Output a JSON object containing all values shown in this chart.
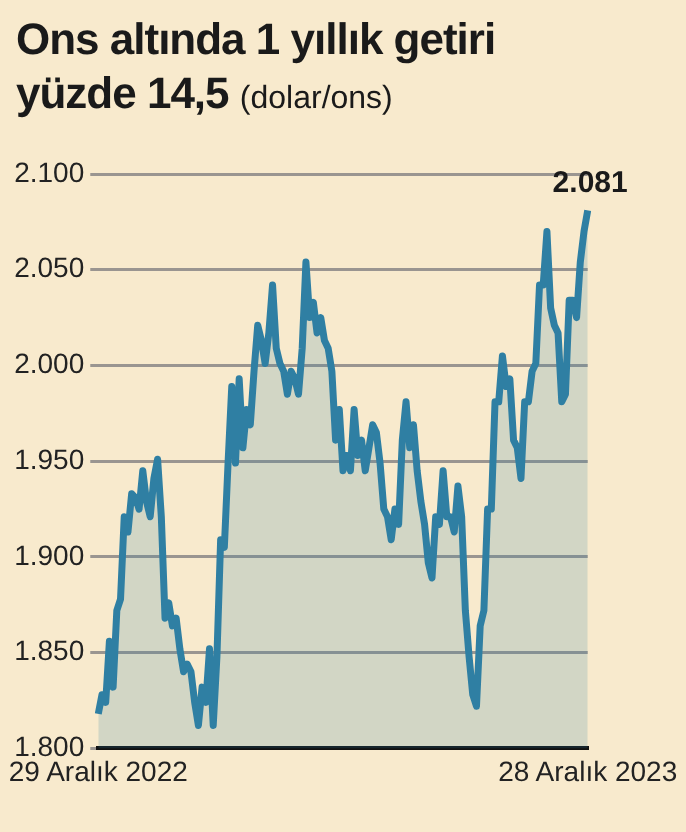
{
  "chart_data": {
    "type": "area",
    "title": "Ons altında 1 yıllık getiri yüzde 14,5",
    "subtitle": "(dolar/ons)",
    "categories": [
      "29 Aralık 2022",
      null,
      null,
      null,
      null,
      null,
      null,
      null,
      null,
      null,
      null,
      null,
      null,
      null,
      null,
      null,
      null,
      null,
      null,
      null,
      null,
      null,
      null,
      null,
      null,
      null,
      null,
      null,
      null,
      null,
      null,
      null,
      null,
      null,
      null,
      null,
      null,
      null,
      null,
      null,
      null,
      null,
      null,
      null,
      null,
      null,
      null,
      null,
      null,
      null,
      null,
      null,
      null,
      null,
      null,
      null,
      null,
      null,
      null,
      null,
      null,
      null,
      null,
      null,
      null,
      null,
      null,
      null,
      null,
      null,
      null,
      null,
      null,
      null,
      null,
      null,
      null,
      null,
      null,
      null,
      null,
      null,
      null,
      null,
      null,
      null,
      null,
      null,
      null,
      null,
      null,
      null,
      null,
      null,
      null,
      null,
      null,
      null,
      null,
      null,
      null,
      null,
      null,
      null,
      null,
      null,
      null,
      null,
      null,
      null,
      null,
      null,
      null,
      null,
      null,
      null,
      null,
      null,
      null,
      null,
      null,
      null,
      null,
      null,
      null,
      null,
      null,
      null,
      null,
      null,
      null,
      null,
      "28 Aralık 2023"
    ],
    "series": [
      {
        "color": "#2f7fa3",
        "values": [
          1818,
          1828,
          1824,
          1856,
          1832,
          1872,
          1878,
          1921,
          1913,
          1933,
          1931,
          1925,
          1945,
          1929,
          1921,
          1941,
          1951,
          1921,
          1868,
          1876,
          1864,
          1868,
          1852,
          1840,
          1844,
          1840,
          1824,
          1812,
          1832,
          1824,
          1852,
          1812,
          1848,
          1909,
          1905,
          1949,
          1989,
          1949,
          1993,
          1957,
          1977,
          1969,
          1997,
          2021,
          2013,
          2001,
          2017,
          2042,
          2009,
          2001,
          1997,
          1985,
          1997,
          1993,
          1985,
          2009,
          2054,
          2025,
          2033,
          2017,
          2025,
          2013,
          2009,
          1997,
          1961,
          1977,
          1945,
          1953,
          1945,
          1977,
          1953,
          1961,
          1945,
          1957,
          1969,
          1965,
          1949,
          1925,
          1921,
          1909,
          1925,
          1917,
          1961,
          1981,
          1957,
          1969,
          1945,
          1929,
          1917,
          1897,
          1889,
          1921,
          1917,
          1945,
          1921,
          1921,
          1913,
          1937,
          1921,
          1872,
          1848,
          1828,
          1822,
          1864,
          1872,
          1925,
          1925,
          1981,
          1981,
          2005,
          1989,
          1993,
          1961,
          1957,
          1941,
          1981,
          1981,
          1997,
          2001,
          2042,
          2042,
          2070,
          2030,
          2021,
          2017,
          1981,
          1985,
          2034,
          2034,
          2025,
          2054,
          2070,
          2081
        ]
      }
    ],
    "ylim": [
      1800,
      2100
    ],
    "yticks": [
      {
        "value": 1800,
        "label": "1.800"
      },
      {
        "value": 1850,
        "label": "1.850"
      },
      {
        "value": 1900,
        "label": "1.900"
      },
      {
        "value": 1950,
        "label": "1.950"
      },
      {
        "value": 2000,
        "label": "2.000"
      },
      {
        "value": 2050,
        "label": "2.050"
      },
      {
        "value": 2100,
        "label": "2.100"
      }
    ],
    "grid": "y",
    "legend": false,
    "marker": "none",
    "line_style": "solid",
    "annotations": [
      {
        "text": "2.081",
        "x": "28 Aralık 2023",
        "y": 2081
      }
    ]
  }
}
